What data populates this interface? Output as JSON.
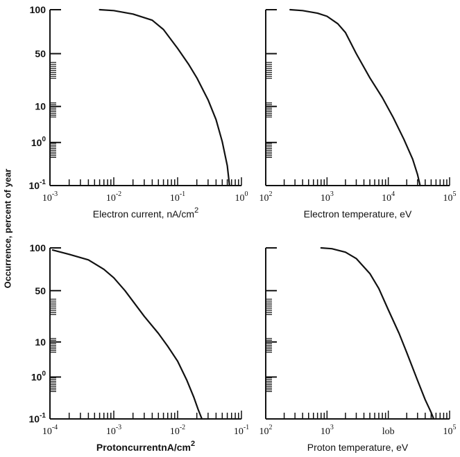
{
  "figure": {
    "shared_ylabel": "Occurrence, percent of year"
  },
  "chart_data": [
    {
      "type": "line",
      "xlabel": "Electron current, nA/cm",
      "xlabel_sup": "2",
      "x_scale": "log",
      "xlim": [
        0.001,
        1
      ],
      "x_ticks": [
        {
          "value": 0.001,
          "label": "10",
          "exp": "-3"
        },
        {
          "value": 0.01,
          "label": "10",
          "exp": "-2"
        },
        {
          "value": 0.1,
          "label": "10",
          "exp": "-1"
        },
        {
          "value": 1,
          "label": "10",
          "exp": "0"
        }
      ],
      "y_ticks": [
        {
          "label": "100",
          "exp": ""
        },
        {
          "label": "50",
          "exp": ""
        },
        {
          "label": "10",
          "exp": ""
        },
        {
          "label": "10",
          "exp": "0"
        },
        {
          "label": "10",
          "exp": "-1"
        }
      ],
      "show_y_labels": true,
      "series": [
        {
          "x": [
            0.006,
            0.01,
            0.02,
            0.04,
            0.06,
            0.1,
            0.15,
            0.2,
            0.3,
            0.4,
            0.5,
            0.6,
            0.65
          ],
          "y_level": [
            4.0,
            3.98,
            3.9,
            3.76,
            3.55,
            3.12,
            2.75,
            2.45,
            1.95,
            1.5,
            1.0,
            0.45,
            0.0
          ]
        }
      ]
    },
    {
      "type": "line",
      "xlabel": "Electron temperature, eV",
      "xlabel_sup": "",
      "x_scale": "log",
      "xlim": [
        100,
        100000
      ],
      "x_ticks": [
        {
          "value": 100,
          "label": "10",
          "exp": "2"
        },
        {
          "value": 1000,
          "label": "10",
          "exp": "3"
        },
        {
          "value": 10000,
          "label": "10",
          "exp": "4"
        },
        {
          "value": 100000,
          "label": "10",
          "exp": "5"
        }
      ],
      "y_ticks": [
        {
          "label": "100",
          "exp": ""
        },
        {
          "label": "50",
          "exp": ""
        },
        {
          "label": "10",
          "exp": ""
        },
        {
          "label": "10",
          "exp": "0"
        },
        {
          "label": "10",
          "exp": "-1"
        }
      ],
      "show_y_labels": false,
      "series": [
        {
          "x": [
            250,
            400,
            700,
            1000,
            1500,
            2000,
            3000,
            5000,
            8000,
            12000,
            18000,
            25000,
            30000,
            33000
          ],
          "y_level": [
            4.0,
            3.98,
            3.92,
            3.85,
            3.68,
            3.48,
            3.0,
            2.45,
            2.0,
            1.55,
            1.05,
            0.6,
            0.25,
            0.0
          ]
        }
      ]
    },
    {
      "type": "line",
      "xlabel": "ProtoncurrentnA/cm",
      "xlabel_sup": "2",
      "x_scale": "log",
      "xlim": [
        0.0001,
        0.1
      ],
      "x_ticks": [
        {
          "value": 0.0001,
          "label": "10",
          "exp": "-4"
        },
        {
          "value": 0.001,
          "label": "10",
          "exp": "-3"
        },
        {
          "value": 0.01,
          "label": "10",
          "exp": "-2"
        },
        {
          "value": 0.1,
          "label": "10",
          "exp": "-1"
        }
      ],
      "y_ticks": [
        {
          "label": "100",
          "exp": ""
        },
        {
          "label": "50",
          "exp": ""
        },
        {
          "label": "10",
          "exp": ""
        },
        {
          "label": "10",
          "exp": "0"
        },
        {
          "label": "10",
          "exp": "-1"
        }
      ],
      "show_y_labels": true,
      "series": [
        {
          "x": [
            0.00011,
            0.0002,
            0.0004,
            0.0007,
            0.001,
            0.0015,
            0.002,
            0.003,
            0.005,
            0.007,
            0.01,
            0.014,
            0.018,
            0.021,
            0.024
          ],
          "y_level": [
            3.95,
            3.85,
            3.72,
            3.5,
            3.3,
            3.0,
            2.75,
            2.4,
            2.0,
            1.7,
            1.35,
            0.9,
            0.5,
            0.22,
            0.0
          ]
        }
      ]
    },
    {
      "type": "line",
      "xlabel": "Proton temperature, eV",
      "xlabel_sup": "",
      "x_scale": "log",
      "xlim": [
        100,
        100000
      ],
      "x_ticks": [
        {
          "value": 100,
          "label": "10",
          "exp": "2"
        },
        {
          "value": 1000,
          "label": "10",
          "exp": "3"
        },
        {
          "value": 10000,
          "label": "lob",
          "exp": ""
        },
        {
          "value": 100000,
          "label": "10",
          "exp": "5"
        }
      ],
      "y_ticks": [
        {
          "label": "100",
          "exp": ""
        },
        {
          "label": "50",
          "exp": ""
        },
        {
          "label": "10",
          "exp": ""
        },
        {
          "label": "10",
          "exp": "0"
        },
        {
          "label": "10",
          "exp": "-1"
        }
      ],
      "show_y_labels": false,
      "series": [
        {
          "x": [
            800,
            1200,
            2000,
            3000,
            5000,
            7000,
            10000,
            15000,
            20000,
            30000,
            40000,
            50000,
            55000
          ],
          "y_level": [
            4.0,
            3.98,
            3.9,
            3.75,
            3.4,
            3.05,
            2.55,
            2.0,
            1.55,
            0.9,
            0.45,
            0.15,
            0.0
          ]
        }
      ]
    }
  ]
}
